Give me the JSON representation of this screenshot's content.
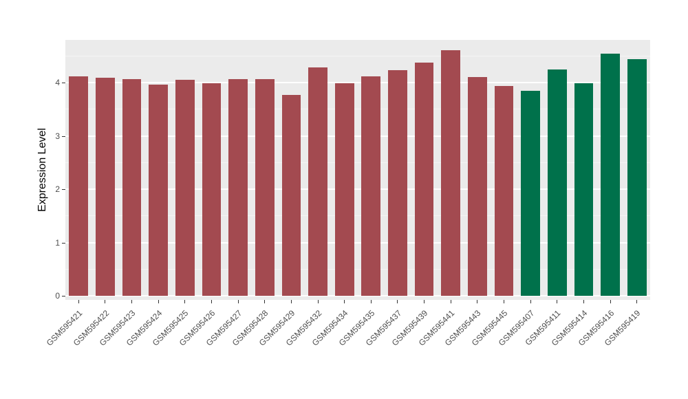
{
  "chart_data": {
    "type": "bar",
    "title": "",
    "xlabel": "",
    "ylabel": "Expression Level",
    "ylim": [
      0,
      4.8
    ],
    "yticks": [
      0,
      1,
      2,
      3,
      4
    ],
    "yticks_minor": [
      0.5,
      1.5,
      2.5,
      3.5,
      4.5
    ],
    "legend": "none",
    "panel_bg": "#EBEBEB",
    "grid_major_color": "#FFFFFF",
    "grid_minor_color": "#F7F7F7",
    "tick_color": "#333333",
    "tick_label_color": "#4D4D4D",
    "axis_title_color": "#000000",
    "group_colors": {
      "group1": "#A34A50",
      "group2": "#00714B"
    },
    "bars": [
      {
        "label": "GSM595421",
        "value": 4.12,
        "color": "#A34A50"
      },
      {
        "label": "GSM595422",
        "value": 4.09,
        "color": "#A34A50"
      },
      {
        "label": "GSM595423",
        "value": 4.07,
        "color": "#A34A50"
      },
      {
        "label": "GSM595424",
        "value": 3.96,
        "color": "#A34A50"
      },
      {
        "label": "GSM595425",
        "value": 4.05,
        "color": "#A34A50"
      },
      {
        "label": "GSM595426",
        "value": 3.99,
        "color": "#A34A50"
      },
      {
        "label": "GSM595427",
        "value": 4.06,
        "color": "#A34A50"
      },
      {
        "label": "GSM595428",
        "value": 4.07,
        "color": "#A34A50"
      },
      {
        "label": "GSM595429",
        "value": 3.77,
        "color": "#A34A50"
      },
      {
        "label": "GSM595432",
        "value": 4.29,
        "color": "#A34A50"
      },
      {
        "label": "GSM595434",
        "value": 3.99,
        "color": "#A34A50"
      },
      {
        "label": "GSM595435",
        "value": 4.11,
        "color": "#A34A50"
      },
      {
        "label": "GSM595437",
        "value": 4.23,
        "color": "#A34A50"
      },
      {
        "label": "GSM595439",
        "value": 4.37,
        "color": "#A34A50"
      },
      {
        "label": "GSM595441",
        "value": 4.61,
        "color": "#A34A50"
      },
      {
        "label": "GSM595443",
        "value": 4.1,
        "color": "#A34A50"
      },
      {
        "label": "GSM595445",
        "value": 3.93,
        "color": "#A34A50"
      },
      {
        "label": "GSM595407",
        "value": 3.84,
        "color": "#00714B"
      },
      {
        "label": "GSM595411",
        "value": 4.24,
        "color": "#00714B"
      },
      {
        "label": "GSM595414",
        "value": 3.99,
        "color": "#00714B"
      },
      {
        "label": "GSM595416",
        "value": 4.54,
        "color": "#00714B"
      },
      {
        "label": "GSM595419",
        "value": 4.44,
        "color": "#00714B"
      }
    ]
  }
}
